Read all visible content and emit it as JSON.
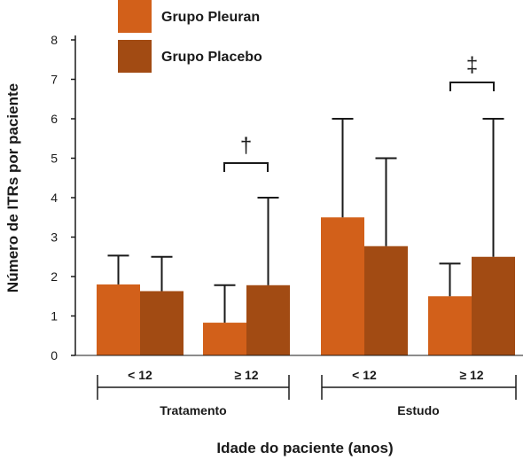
{
  "chart_data": {
    "type": "bar",
    "ylabel": "Número de ITRs por paciente",
    "xlabel": "Idade do paciente (anos)",
    "ylim": [
      0,
      8
    ],
    "yticks": [
      "0",
      "1",
      "2",
      "3",
      "4",
      "5",
      "6",
      "7",
      "8"
    ],
    "groups": [
      {
        "label": "Tratamento",
        "categories": [
          "< 12",
          "≥ 12"
        ]
      },
      {
        "label": "Estudo",
        "categories": [
          "< 12",
          "≥ 12"
        ]
      }
    ],
    "categories": [
      "Tratamento < 12",
      "Tratamento ≥ 12",
      "Estudo < 12",
      "Estudo ≥ 12"
    ],
    "series": [
      {
        "name": "Grupo Pleuran",
        "color": "#d2601a",
        "values": [
          1.8,
          0.83,
          3.5,
          1.5
        ],
        "error_upper": [
          2.53,
          1.78,
          6.0,
          2.33
        ]
      },
      {
        "name": "Grupo Placebo",
        "color": "#a24b13",
        "values": [
          1.63,
          1.78,
          2.77,
          2.5
        ],
        "error_upper": [
          2.5,
          4.0,
          5.0,
          6.0
        ]
      }
    ],
    "annotations": [
      {
        "symbol": "†",
        "group": "Tratamento",
        "category": "≥ 12"
      },
      {
        "symbol": "‡",
        "group": "Estudo",
        "category": "≥ 12"
      }
    ],
    "legend": "top-left",
    "grid": false
  }
}
